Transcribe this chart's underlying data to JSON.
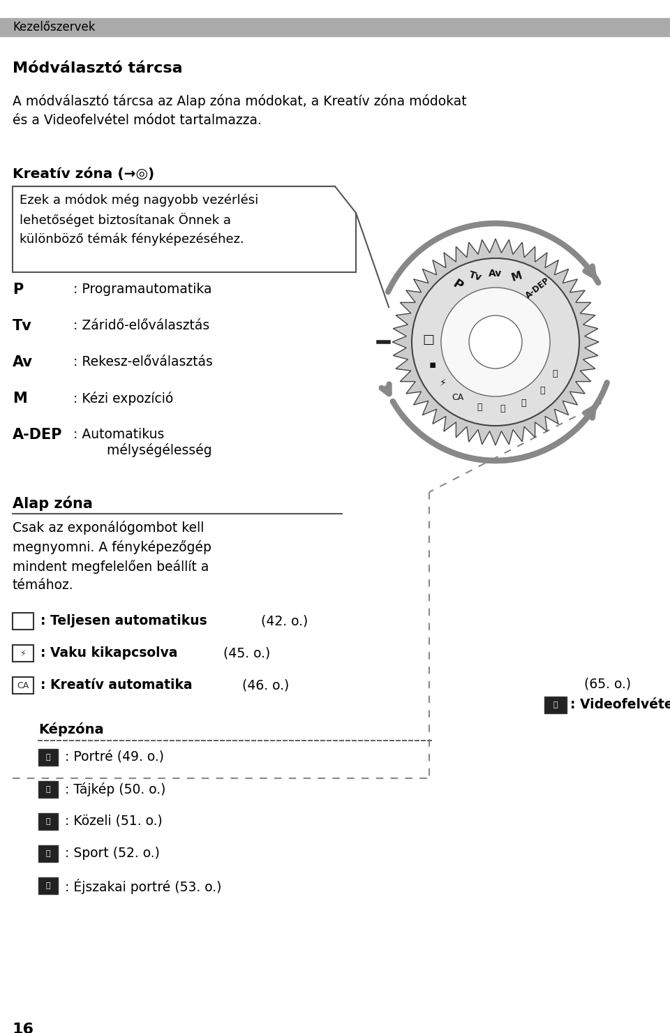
{
  "bg_color": "#ffffff",
  "header_bar_color": "#aaaaaa",
  "header_text": "Kezelőszervek",
  "title": "Módválasztó tárcsa",
  "intro_text": "A módválasztó tárcsa az Alap zóna módokat, a Kreatív zóna módokat\nés a Videofelvétel módot tartalmazza.",
  "kreativ_title": "Kreatív zóna (→◎)",
  "kreativ_box_text": "Ezek a módok még nagyobb vezérlési\nlehetőséget biztosítanak Önnek a\nkülönböző témák fényképezéséhez.",
  "mode_labels": [
    "P",
    "Tv",
    "Av",
    "M",
    "A-DEP"
  ],
  "mode_descs": [
    ": Programautomatika",
    ": Záridő-előválasztás",
    ": Rekesz-előválasztás",
    ": Kézi expozíció",
    ": Automatikus"
  ],
  "mode_extra": [
    "",
    "",
    "",
    "",
    "        mélységélesség"
  ],
  "alap_title": "Alap zóna",
  "alap_text": "Csak az exponálógombot kell\nmegnyomni. A fényképezőgép\nmindent megfelelően beállít a\ntémához.",
  "item_bold_texts": [
    ": Teljesen automatikus ",
    ": Vaku kikapcsolva ",
    ": Kreatív automatika "
  ],
  "item_normal_texts": [
    "(42. o.)",
    "(45. o.)",
    "(46. o.)"
  ],
  "kepzona_title": "Képzóna",
  "kepzona_items": [
    ": Portré (49. o.)",
    ": Tájkép (50. o.)",
    ": Közeli (51. o.)",
    ": Sport (52. o.)",
    ": Éjszakai portré (53. o.)"
  ],
  "video_bold": ": Videofelvétel",
  "video_normal": "(65. o.)",
  "page_number": "16"
}
